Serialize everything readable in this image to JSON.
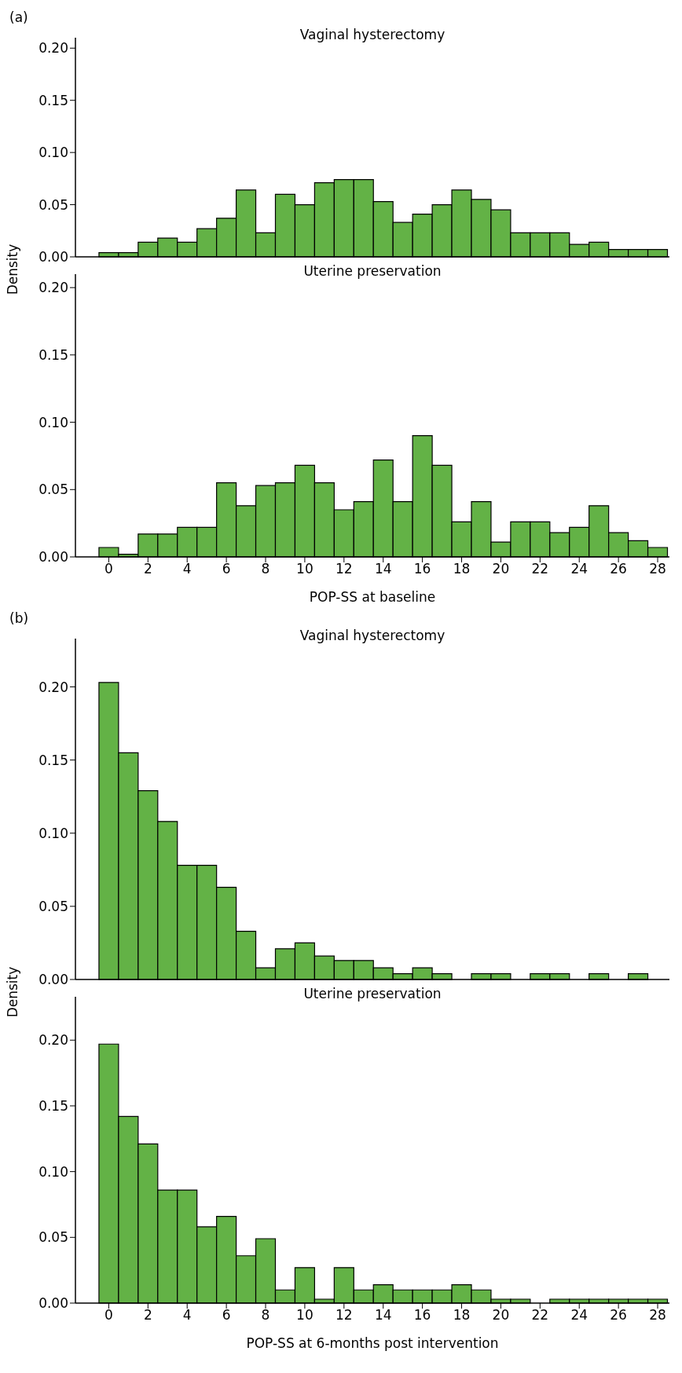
{
  "chart_data": [
    {
      "type": "histogram",
      "title": "Vaginal hysterectomy",
      "ylabel": "Density",
      "annotations": [
        "(a)"
      ],
      "color": "#63b246",
      "tick_labels": "y",
      "bins": [
        -0.5,
        0.5,
        1.5,
        2.5,
        3.5,
        4.5,
        5.5,
        6.5,
        7.5,
        8.5,
        9.5,
        10.5,
        11.5,
        12.5,
        13.5,
        14.5,
        15.5,
        16.5,
        17.5,
        18.5,
        19.5,
        20.5,
        21.5,
        22.5,
        23.5,
        24.5,
        25.5,
        26.5,
        27.5,
        28.5
      ],
      "values": [
        0.004,
        0.004,
        0.014,
        0.018,
        0.014,
        0.027,
        0.037,
        0.064,
        0.023,
        0.06,
        0.05,
        0.071,
        0.074,
        0.074,
        0.053,
        0.033,
        0.041,
        0.05,
        0.064,
        0.055,
        0.045,
        0.023,
        0.023,
        0.023,
        0.012,
        0.014,
        0.007,
        0.007,
        0.007
      ],
      "xlim": [
        -1.7,
        28.6
      ],
      "ylim": [
        0,
        0.21
      ],
      "yticks": [
        {
          "value": 0,
          "label": "0.00"
        },
        {
          "value": 0.05,
          "label": "0.05"
        },
        {
          "value": 0.1,
          "label": "0.10"
        },
        {
          "value": 0.15,
          "label": "0.15"
        },
        {
          "value": 0.2,
          "label": "0.20"
        }
      ],
      "grid": false
    },
    {
      "type": "histogram",
      "title": "Uterine preservation",
      "xlabel": "POP-SS at baseline",
      "color": "#63b246",
      "bins": [
        -0.5,
        0.5,
        1.5,
        2.5,
        3.5,
        4.5,
        5.5,
        6.5,
        7.5,
        8.5,
        9.5,
        10.5,
        11.5,
        12.5,
        13.5,
        14.5,
        15.5,
        16.5,
        17.5,
        18.5,
        19.5,
        20.5,
        21.5,
        22.5,
        23.5,
        24.5,
        25.5,
        26.5,
        27.5,
        28.5
      ],
      "values": [
        0.007,
        0.002,
        0.017,
        0.017,
        0.022,
        0.022,
        0.055,
        0.038,
        0.053,
        0.055,
        0.068,
        0.055,
        0.035,
        0.041,
        0.072,
        0.041,
        0.09,
        0.068,
        0.026,
        0.041,
        0.011,
        0.026,
        0.026,
        0.018,
        0.022,
        0.038,
        0.018,
        0.012,
        0.007
      ],
      "xlim": [
        -1.7,
        28.6
      ],
      "xticks": [
        0,
        2,
        4,
        6,
        8,
        10,
        12,
        14,
        16,
        18,
        20,
        22,
        24,
        26,
        28
      ],
      "ylim": [
        0,
        0.21
      ],
      "yticks": [
        {
          "value": 0,
          "label": "0.00"
        },
        {
          "value": 0.05,
          "label": "0.05"
        },
        {
          "value": 0.1,
          "label": "0.10"
        },
        {
          "value": 0.15,
          "label": "0.15"
        },
        {
          "value": 0.2,
          "label": "0.20"
        }
      ],
      "grid": false
    },
    {
      "type": "histogram",
      "title": "Vaginal hysterectomy",
      "ylabel": "Density",
      "annotations": [
        "(b)"
      ],
      "color": "#63b246",
      "tick_labels": "y",
      "bins": [
        -0.5,
        0.5,
        1.5,
        2.5,
        3.5,
        4.5,
        5.5,
        6.5,
        7.5,
        8.5,
        9.5,
        10.5,
        11.5,
        12.5,
        13.5,
        14.5,
        15.5,
        16.5,
        17.5,
        18.5,
        19.5,
        20.5,
        21.5,
        22.5,
        23.5,
        24.5,
        25.5,
        26.5,
        27.5,
        28.5
      ],
      "values": [
        0.203,
        0.155,
        0.129,
        0.108,
        0.078,
        0.078,
        0.063,
        0.033,
        0.008,
        0.021,
        0.025,
        0.016,
        0.013,
        0.013,
        0.008,
        0.004,
        0.008,
        0.004,
        0,
        0.004,
        0.004,
        0,
        0.004,
        0.004,
        0,
        0.004,
        0,
        0.004,
        0
      ],
      "xlim": [
        -1.7,
        28.6
      ],
      "ylim": [
        0,
        0.233
      ],
      "yticks": [
        {
          "value": 0,
          "label": "0.00"
        },
        {
          "value": 0.05,
          "label": "0.05"
        },
        {
          "value": 0.1,
          "label": "0.10"
        },
        {
          "value": 0.15,
          "label": "0.15"
        },
        {
          "value": 0.2,
          "label": "0.20"
        }
      ],
      "grid": false
    },
    {
      "type": "histogram",
      "title": "Uterine preservation",
      "xlabel": "POP-SS at 6-months post intervention",
      "color": "#63b246",
      "bins": [
        -0.5,
        0.5,
        1.5,
        2.5,
        3.5,
        4.5,
        5.5,
        6.5,
        7.5,
        8.5,
        9.5,
        10.5,
        11.5,
        12.5,
        13.5,
        14.5,
        15.5,
        16.5,
        17.5,
        18.5,
        19.5,
        20.5,
        21.5,
        22.5,
        23.5,
        24.5,
        25.5,
        26.5,
        27.5,
        28.5
      ],
      "values": [
        0.197,
        0.142,
        0.121,
        0.086,
        0.086,
        0.058,
        0.066,
        0.036,
        0.049,
        0.01,
        0.027,
        0.003,
        0.027,
        0.01,
        0.014,
        0.01,
        0.01,
        0.01,
        0.014,
        0.01,
        0.003,
        0.003,
        0,
        0.003,
        0.003,
        0.003,
        0.003,
        0.003,
        0.003
      ],
      "xlim": [
        -1.7,
        28.6
      ],
      "xticks": [
        0,
        2,
        4,
        6,
        8,
        10,
        12,
        14,
        16,
        18,
        20,
        22,
        24,
        26,
        28
      ],
      "ylim": [
        0,
        0.233
      ],
      "yticks": [
        {
          "value": 0,
          "label": "0.00"
        },
        {
          "value": 0.05,
          "label": "0.05"
        },
        {
          "value": 0.1,
          "label": "0.10"
        },
        {
          "value": 0.15,
          "label": "0.15"
        },
        {
          "value": 0.2,
          "label": "0.20"
        }
      ],
      "grid": false
    }
  ]
}
